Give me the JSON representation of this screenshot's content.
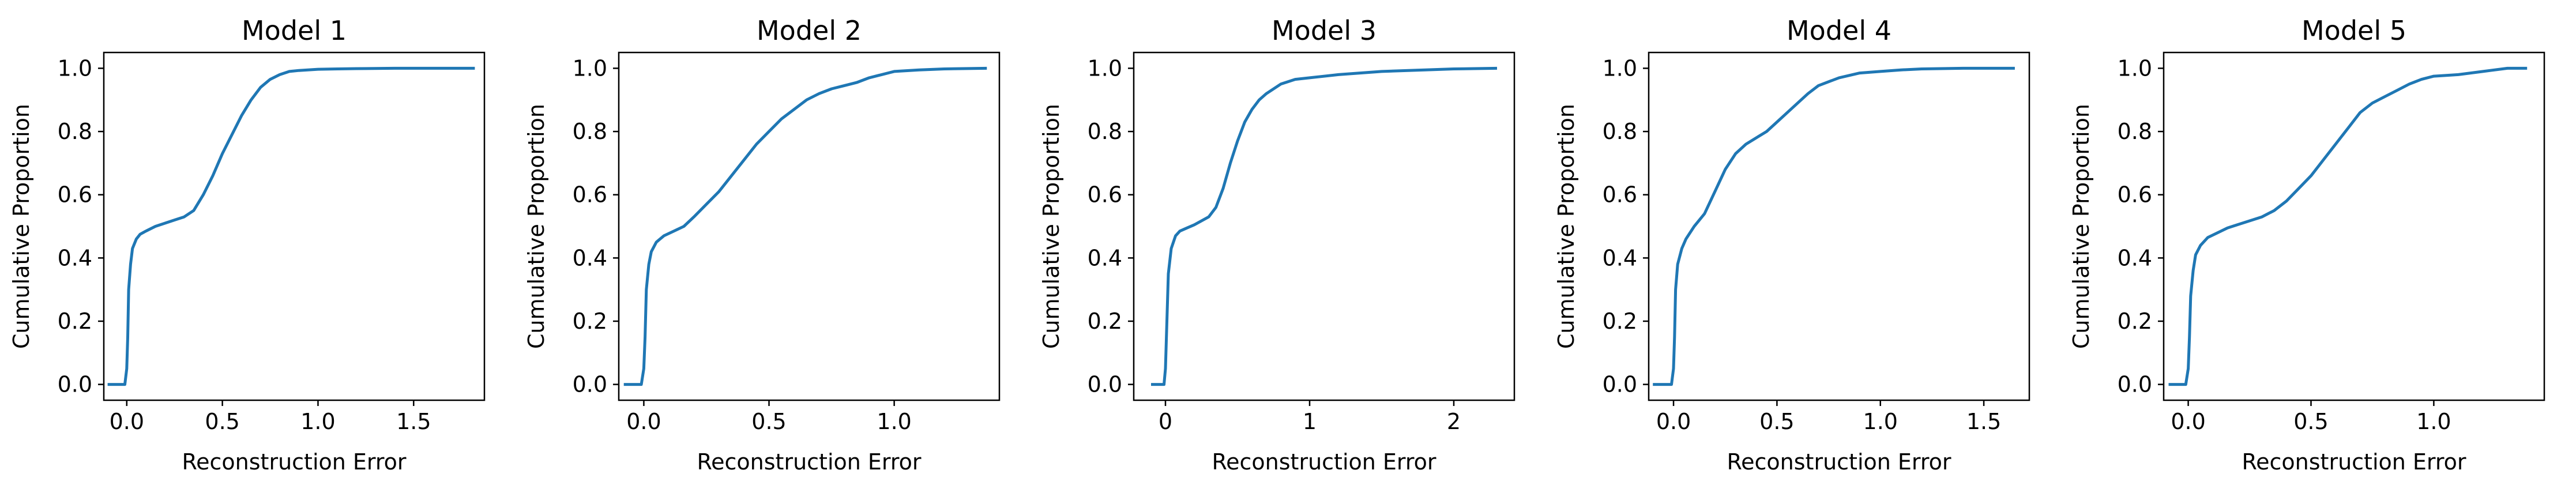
{
  "chart_data": [
    {
      "type": "line",
      "title": "Model 1",
      "xlabel": "Reconstruction Error",
      "ylabel": "Cumulative Proportion",
      "xlim": [
        -0.12,
        1.87
      ],
      "ylim": [
        -0.05,
        1.05
      ],
      "xticks": [
        0.0,
        0.5,
        1.0,
        1.5
      ],
      "xtick_labels": [
        "0.0",
        "0.5",
        "1.0",
        "1.5"
      ],
      "yticks": [
        0.0,
        0.2,
        0.4,
        0.6,
        0.8,
        1.0
      ],
      "ytick_labels": [
        "0.0",
        "0.2",
        "0.4",
        "0.6",
        "0.8",
        "1.0"
      ],
      "grid": false,
      "color": "#1f77b4",
      "series": [
        {
          "x": [
            -0.1,
            -0.01,
            0.0,
            0.005,
            0.01,
            0.02,
            0.03,
            0.05,
            0.07,
            0.1,
            0.15,
            0.2,
            0.25,
            0.3,
            0.35,
            0.4,
            0.45,
            0.5,
            0.55,
            0.6,
            0.65,
            0.7,
            0.75,
            0.8,
            0.85,
            0.9,
            1.0,
            1.1,
            1.2,
            1.4,
            1.6,
            1.82
          ],
          "y": [
            0.0,
            0.0,
            0.05,
            0.15,
            0.3,
            0.38,
            0.43,
            0.46,
            0.475,
            0.485,
            0.5,
            0.51,
            0.52,
            0.53,
            0.55,
            0.6,
            0.66,
            0.73,
            0.79,
            0.85,
            0.9,
            0.94,
            0.965,
            0.98,
            0.99,
            0.993,
            0.997,
            0.998,
            0.999,
            1.0,
            1.0,
            1.0
          ]
        }
      ]
    },
    {
      "type": "line",
      "title": "Model 2",
      "xlabel": "Reconstruction Error",
      "ylabel": "Cumulative Proportion",
      "xlim": [
        -0.1,
        1.42
      ],
      "ylim": [
        -0.05,
        1.05
      ],
      "xticks": [
        0.0,
        0.5,
        1.0
      ],
      "xtick_labels": [
        "0.0",
        "0.5",
        "1.0"
      ],
      "yticks": [
        0.0,
        0.2,
        0.4,
        0.6,
        0.8,
        1.0
      ],
      "ytick_labels": [
        "0.0",
        "0.2",
        "0.4",
        "0.6",
        "0.8",
        "1.0"
      ],
      "grid": false,
      "color": "#1f77b4",
      "series": [
        {
          "x": [
            -0.08,
            -0.01,
            0.0,
            0.005,
            0.01,
            0.02,
            0.03,
            0.05,
            0.08,
            0.12,
            0.16,
            0.2,
            0.25,
            0.3,
            0.35,
            0.4,
            0.45,
            0.5,
            0.55,
            0.6,
            0.65,
            0.7,
            0.75,
            0.8,
            0.85,
            0.9,
            0.95,
            1.0,
            1.1,
            1.2,
            1.37
          ],
          "y": [
            0.0,
            0.0,
            0.05,
            0.15,
            0.3,
            0.38,
            0.42,
            0.45,
            0.47,
            0.485,
            0.5,
            0.53,
            0.57,
            0.61,
            0.66,
            0.71,
            0.76,
            0.8,
            0.84,
            0.87,
            0.9,
            0.92,
            0.935,
            0.945,
            0.955,
            0.97,
            0.98,
            0.99,
            0.995,
            0.998,
            1.0
          ]
        }
      ]
    },
    {
      "type": "line",
      "title": "Model 3",
      "xlabel": "Reconstruction Error",
      "ylabel": "Cumulative Proportion",
      "xlim": [
        -0.22,
        2.42
      ],
      "ylim": [
        -0.05,
        1.05
      ],
      "xticks": [
        0,
        1,
        2
      ],
      "xtick_labels": [
        "0",
        "1",
        "2"
      ],
      "yticks": [
        0.0,
        0.2,
        0.4,
        0.6,
        0.8,
        1.0
      ],
      "ytick_labels": [
        "0.0",
        "0.2",
        "0.4",
        "0.6",
        "0.8",
        "1.0"
      ],
      "grid": false,
      "color": "#1f77b4",
      "series": [
        {
          "x": [
            -0.1,
            -0.01,
            0.0,
            0.01,
            0.02,
            0.04,
            0.07,
            0.1,
            0.15,
            0.2,
            0.3,
            0.35,
            0.4,
            0.45,
            0.5,
            0.55,
            0.6,
            0.65,
            0.7,
            0.8,
            0.9,
            1.0,
            1.2,
            1.5,
            1.8,
            2.0,
            2.3
          ],
          "y": [
            0.0,
            0.0,
            0.05,
            0.2,
            0.35,
            0.43,
            0.47,
            0.485,
            0.495,
            0.505,
            0.53,
            0.56,
            0.62,
            0.7,
            0.77,
            0.83,
            0.87,
            0.9,
            0.92,
            0.95,
            0.965,
            0.97,
            0.98,
            0.99,
            0.995,
            0.998,
            1.0
          ]
        }
      ]
    },
    {
      "type": "line",
      "title": "Model 4",
      "xlabel": "Reconstruction Error",
      "ylabel": "Cumulative Proportion",
      "xlim": [
        -0.12,
        1.72
      ],
      "ylim": [
        -0.05,
        1.05
      ],
      "xticks": [
        0.0,
        0.5,
        1.0,
        1.5
      ],
      "xtick_labels": [
        "0.0",
        "0.5",
        "1.0",
        "1.5"
      ],
      "yticks": [
        0.0,
        0.2,
        0.4,
        0.6,
        0.8,
        1.0
      ],
      "ytick_labels": [
        "0.0",
        "0.2",
        "0.4",
        "0.6",
        "0.8",
        "1.0"
      ],
      "grid": false,
      "color": "#1f77b4",
      "series": [
        {
          "x": [
            -0.1,
            -0.01,
            0.0,
            0.005,
            0.01,
            0.02,
            0.04,
            0.06,
            0.1,
            0.15,
            0.2,
            0.25,
            0.3,
            0.35,
            0.4,
            0.45,
            0.5,
            0.55,
            0.6,
            0.65,
            0.7,
            0.8,
            0.9,
            1.0,
            1.1,
            1.2,
            1.4,
            1.65
          ],
          "y": [
            0.0,
            0.0,
            0.05,
            0.15,
            0.3,
            0.38,
            0.43,
            0.46,
            0.5,
            0.54,
            0.61,
            0.68,
            0.73,
            0.76,
            0.78,
            0.8,
            0.83,
            0.86,
            0.89,
            0.92,
            0.945,
            0.97,
            0.985,
            0.99,
            0.995,
            0.998,
            1.0,
            1.0
          ]
        }
      ]
    },
    {
      "type": "line",
      "title": "Model 5",
      "xlabel": "Reconstruction Error",
      "ylabel": "Cumulative Proportion",
      "xlim": [
        -0.1,
        1.45
      ],
      "ylim": [
        -0.05,
        1.05
      ],
      "xticks": [
        0.0,
        0.5,
        1.0
      ],
      "xtick_labels": [
        "0.0",
        "0.5",
        "1.0"
      ],
      "yticks": [
        0.0,
        0.2,
        0.4,
        0.6,
        0.8,
        1.0
      ],
      "ytick_labels": [
        "0.0",
        "0.2",
        "0.4",
        "0.6",
        "0.8",
        "1.0"
      ],
      "grid": false,
      "color": "#1f77b4",
      "series": [
        {
          "x": [
            -0.08,
            -0.01,
            0.0,
            0.005,
            0.01,
            0.02,
            0.03,
            0.05,
            0.08,
            0.12,
            0.16,
            0.2,
            0.3,
            0.35,
            0.4,
            0.45,
            0.5,
            0.55,
            0.6,
            0.65,
            0.7,
            0.75,
            0.8,
            0.85,
            0.9,
            0.95,
            1.0,
            1.1,
            1.2,
            1.3,
            1.38
          ],
          "y": [
            0.0,
            0.0,
            0.05,
            0.15,
            0.28,
            0.36,
            0.41,
            0.44,
            0.465,
            0.48,
            0.495,
            0.505,
            0.53,
            0.55,
            0.58,
            0.62,
            0.66,
            0.71,
            0.76,
            0.81,
            0.86,
            0.89,
            0.91,
            0.93,
            0.95,
            0.965,
            0.975,
            0.98,
            0.99,
            1.0,
            1.0
          ]
        }
      ]
    }
  ]
}
